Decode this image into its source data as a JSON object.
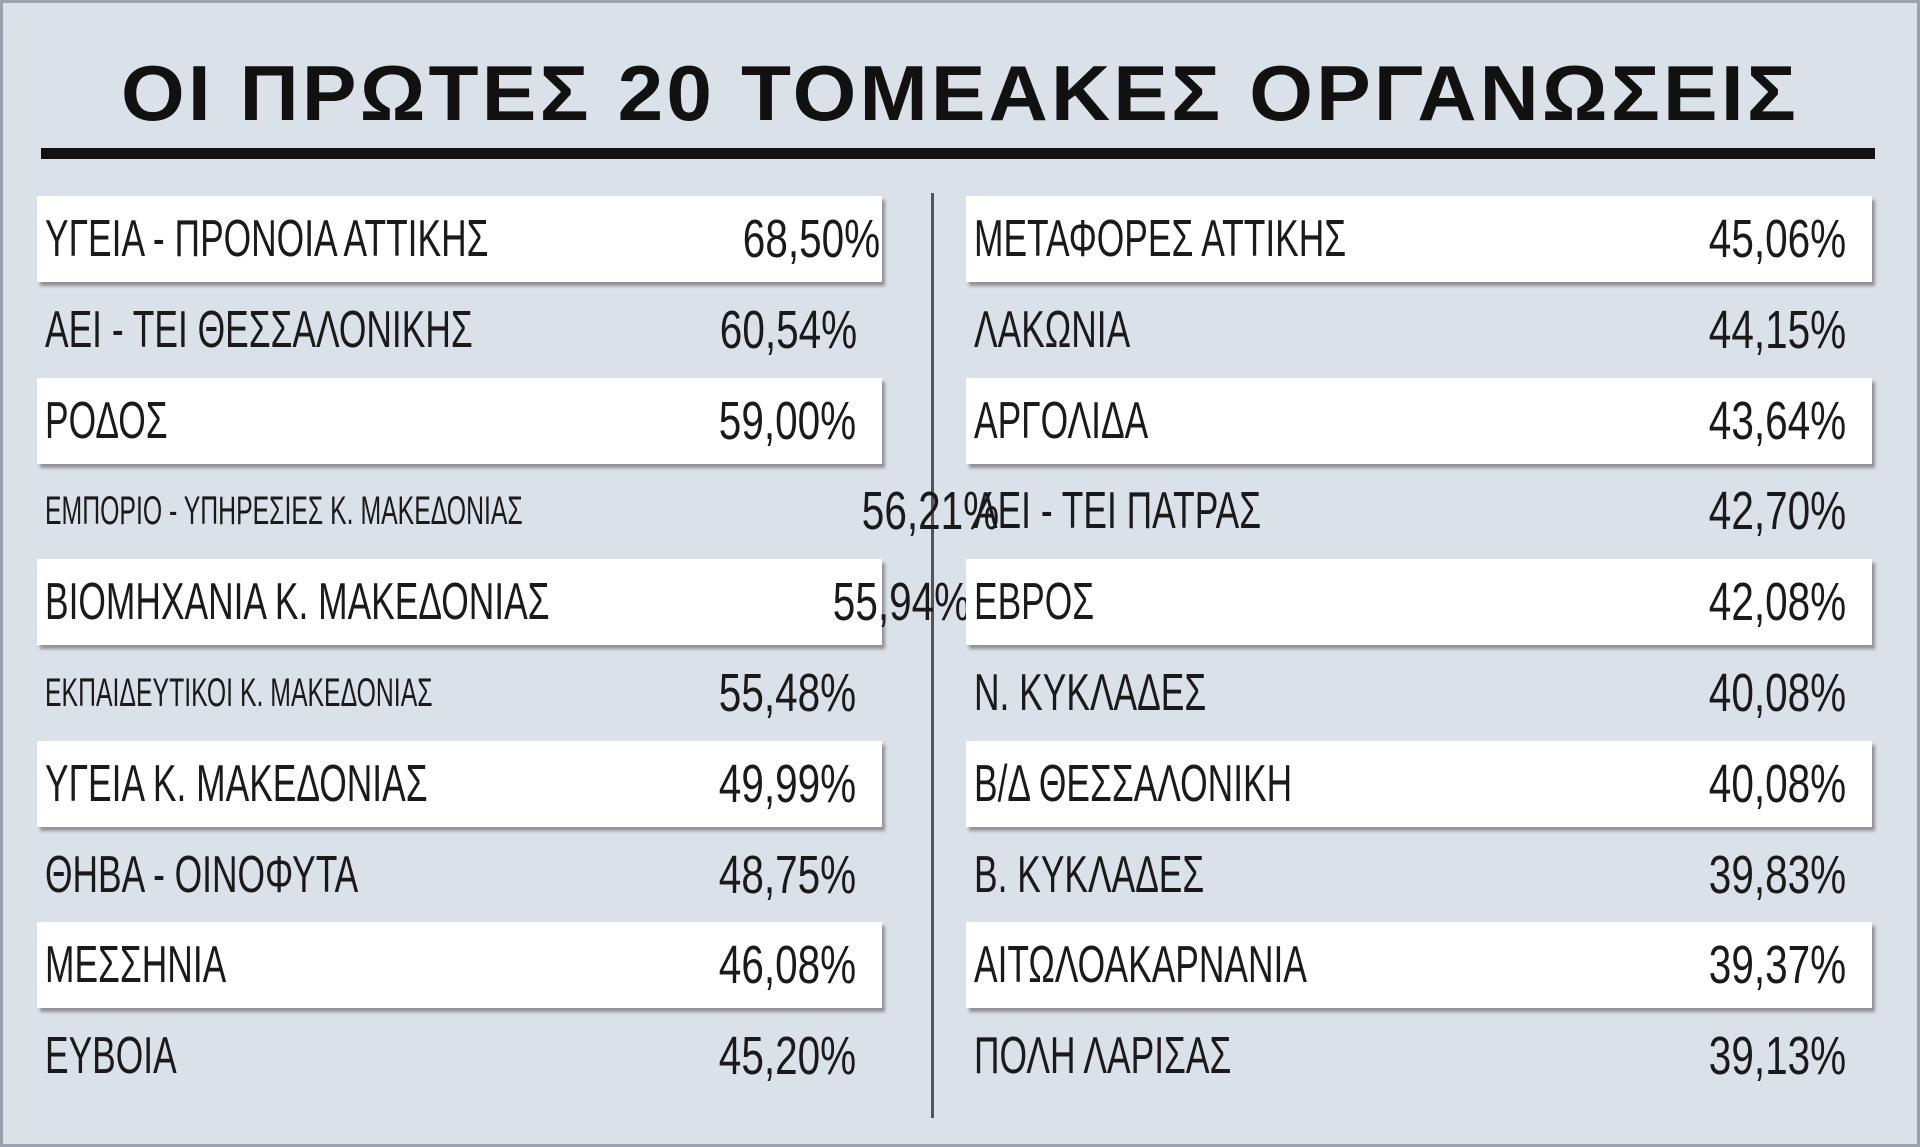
{
  "header": {
    "title": "ΟΙ ΠΡΩΤΕΣ 20 ΤΟΜΕΑΚΕΣ ΟΡΓΑΝΩΣΕΙΣ"
  },
  "table": {
    "left": [
      [
        "ΥΓΕΙΑ - ΠΡΟΝΟΙΑ ΑΤΤΙΚΗΣ",
        "68,50%"
      ],
      [
        "ΑΕΙ - ΤΕΙ ΘΕΣΣΑΛΟΝΙΚΗΣ",
        "60,54%"
      ],
      [
        "ΡΟΔΟΣ",
        "59,00%"
      ],
      [
        "ΕΜΠΟΡΙΟ - ΥΠΗΡΕΣΙΕΣ Κ. ΜΑΚΕΔΟΝΙΑΣ",
        "56,21%"
      ],
      [
        "ΒΙΟΜΗΧΑΝΙΑ Κ. ΜΑΚΕΔΟΝΙΑΣ",
        "55,94%"
      ],
      [
        "ΕΚΠΑΙΔΕΥΤΙΚΟΙ Κ. ΜΑΚΕΔΟΝΙΑΣ",
        "55,48%"
      ],
      [
        "ΥΓΕΙΑ Κ. ΜΑΚΕΔΟΝΙΑΣ",
        "49,99%"
      ],
      [
        "ΘΗΒΑ - ΟΙΝΟΦΥΤΑ",
        "48,75%"
      ],
      [
        "ΜΕΣΣΗΝΙΑ",
        "46,08%"
      ],
      [
        "ΕΥΒΟΙΑ",
        "45,20%"
      ]
    ],
    "right": [
      [
        "ΜΕΤΑΦΟΡΕΣ ΑΤΤΙΚΗΣ",
        "45,06%"
      ],
      [
        "ΛΑΚΩΝΙΑ",
        "44,15%"
      ],
      [
        "ΑΡΓΟΛΙΔΑ",
        "43,64%"
      ],
      [
        "ΑΕΙ - ΤΕΙ ΠΑΤΡΑΣ",
        "42,70%"
      ],
      [
        "ΕΒΡΟΣ",
        "42,08%"
      ],
      [
        "Ν. ΚΥΚΛΑΔΕΣ",
        "40,08%"
      ],
      [
        "Β/Δ ΘΕΣΣΑΛΟΝΙΚΗ",
        "40,08%"
      ],
      [
        "Β. ΚΥΚΛΑΔΕΣ",
        "39,83%"
      ],
      [
        "ΑΙΤΩΛΟΑΚΑΡΝΑΝΙΑ",
        "39,37%"
      ],
      [
        "ΠΟΛΗ ΛΑΡΙΣΑΣ",
        "39,13%"
      ]
    ]
  }
}
